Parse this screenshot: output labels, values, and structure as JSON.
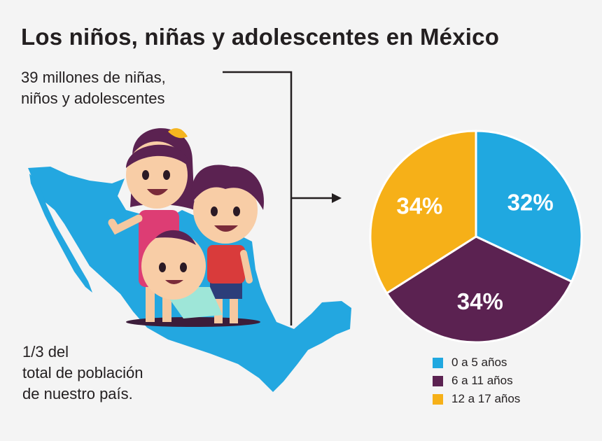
{
  "title": "Los niños, niñas y adolescentes en México",
  "stat_top": {
    "line1": "39 millones de niñas,",
    "line2": "niños y adolescentes"
  },
  "stat_bottom": {
    "line1": "1/3 del",
    "line2": "total de población",
    "line3": "de nuestro país."
  },
  "illustration": {
    "map": "mexico-map",
    "characters": [
      "girl",
      "boy",
      "baby"
    ]
  },
  "colors": {
    "map": "#23a7e0",
    "connector": "#231f20",
    "background": "#f4f4f4"
  },
  "chart_data": {
    "type": "pie",
    "slices": [
      {
        "label": "0 a 5 años",
        "value": 32,
        "display": "32%",
        "color": "#20a8e0"
      },
      {
        "label": "6 a 11 años",
        "value": 34,
        "display": "34%",
        "color": "#5b2251"
      },
      {
        "label": "12 a 17 años",
        "value": 34,
        "display": "34%",
        "color": "#f6b018"
      }
    ],
    "start_angle_deg": 0,
    "direction": "clockwise",
    "legend_position": "bottom"
  }
}
